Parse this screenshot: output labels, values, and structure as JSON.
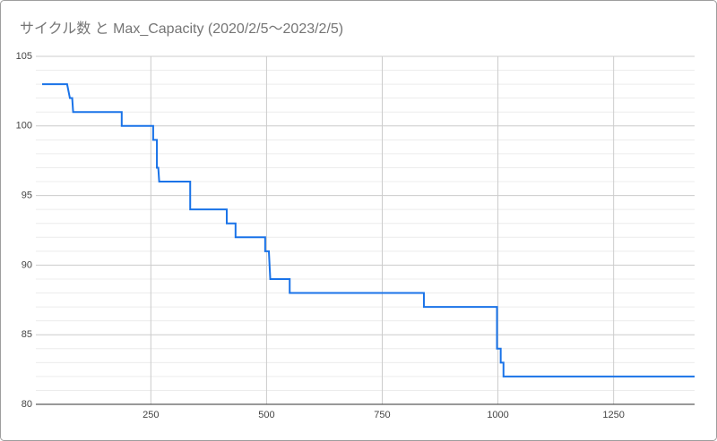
{
  "chart_data": {
    "type": "line",
    "title": "サイクル数 と Max_Capacity (2020/2/5～2023/2/5)",
    "x": [
      15,
      69,
      75,
      80,
      82,
      187,
      187,
      255,
      255,
      263,
      263,
      266,
      268,
      335,
      335,
      414,
      414,
      433,
      433,
      497,
      497,
      505,
      508,
      550,
      550,
      840,
      840,
      998,
      998,
      1006,
      1006,
      1012,
      1012,
      1425
    ],
    "series": [
      {
        "name": "Max_Capacity",
        "color": "#1a73e8",
        "values": [
          103,
          103,
          102,
          102,
          101,
          101,
          100,
          100,
          99,
          99,
          97,
          97,
          96,
          96,
          94,
          94,
          93,
          93,
          92,
          92,
          91,
          91,
          89,
          89,
          88,
          88,
          87,
          87,
          84,
          84,
          83,
          83,
          82,
          82
        ]
      }
    ],
    "xlim": [
      15,
      1425
    ],
    "xticks": [
      250,
      500,
      750,
      1000,
      1250
    ],
    "ylim": [
      80,
      105
    ],
    "yticks": [
      80,
      85,
      90,
      95,
      100,
      105
    ],
    "grid": true,
    "minor_grid": true
  }
}
